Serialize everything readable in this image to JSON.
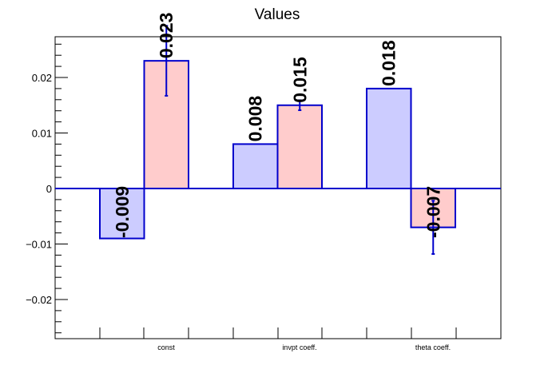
{
  "chart_data": {
    "type": "bar",
    "title": "Values",
    "categories": [
      "const",
      "invpt coeff.",
      "theta coeff."
    ],
    "ylim": [
      -0.027,
      0.027
    ],
    "yticks": [
      -0.02,
      -0.01,
      0,
      0.01,
      0.02
    ],
    "ytick_labels": [
      "−0.02",
      "−0.01",
      "0",
      "0.01",
      "0.02"
    ],
    "grid": false,
    "colors": {
      "fill_a": "#ccccff",
      "fill_b": "#ffcccc",
      "stroke": "#0000cc",
      "axis": "#000000"
    },
    "series": [
      {
        "values": [
          -0.009,
          0.008,
          0.018
        ],
        "labels": [
          "-0.009",
          "0.008",
          "0.018"
        ],
        "errors": [
          0,
          0,
          0
        ]
      },
      {
        "values": [
          0.023,
          0.015,
          -0.007
        ],
        "labels": [
          "0.023",
          "0.015",
          "-0.007"
        ],
        "errors": [
          0.0063,
          0.0009,
          0.0048
        ]
      }
    ]
  }
}
